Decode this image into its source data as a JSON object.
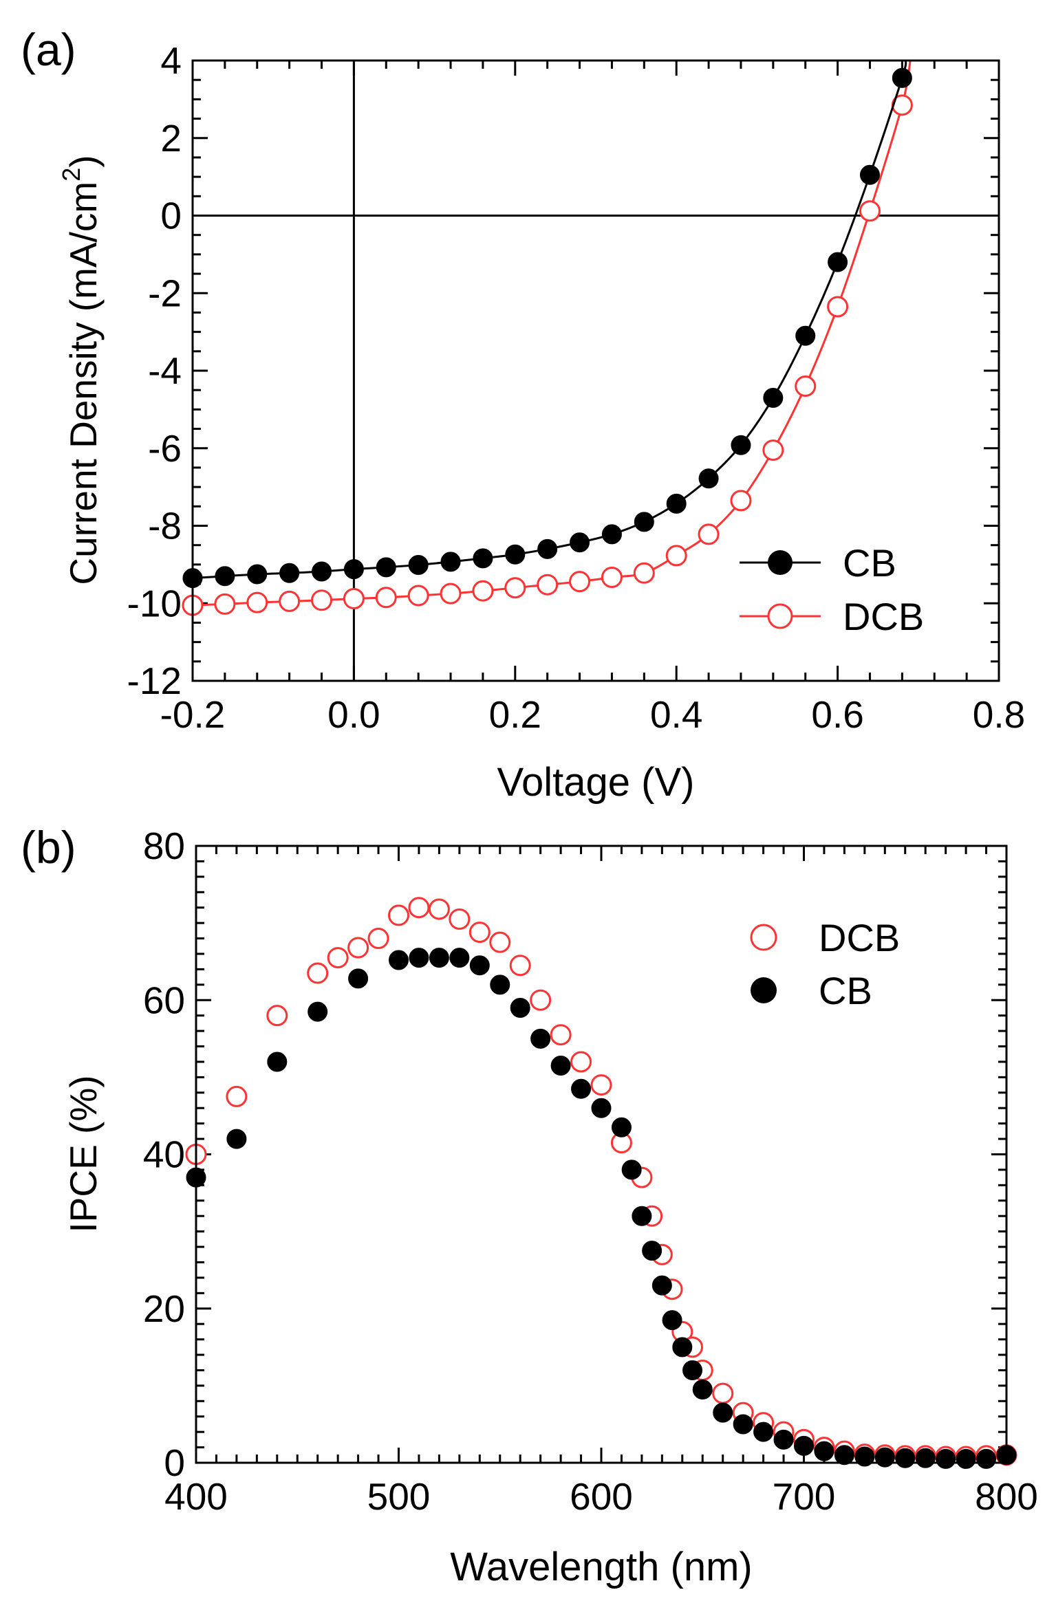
{
  "chart_data": [
    {
      "type": "line",
      "panel_label": "(a)",
      "xlabel": "Voltage (V)",
      "ylabel": "Current Density (mA/cm",
      "ylabel_sup": "2",
      "ylabel_tail": ")",
      "xlim": [
        -0.2,
        0.8
      ],
      "ylim": [
        -12,
        4
      ],
      "xticks": [
        -0.2,
        0.0,
        0.2,
        0.4,
        0.6,
        0.8
      ],
      "xtick_labels": [
        "-0.2",
        "0.0",
        "0.2",
        "0.4",
        "0.6",
        "0.8"
      ],
      "yticks": [
        -12,
        -10,
        -8,
        -6,
        -4,
        -2,
        0,
        2,
        4
      ],
      "ytick_labels": [
        "-12",
        "-10",
        "-8",
        "-6",
        "-4",
        "-2",
        "0",
        "2",
        "4"
      ],
      "zero_lines": true,
      "legend_position": "bottom-right",
      "series": [
        {
          "name": "CB",
          "color": "#000000",
          "marker": "filled-circle",
          "x": [
            -0.2,
            -0.16,
            -0.12,
            -0.08,
            -0.04,
            0.0,
            0.04,
            0.08,
            0.12,
            0.16,
            0.2,
            0.24,
            0.28,
            0.32,
            0.36,
            0.4,
            0.44,
            0.48,
            0.52,
            0.56,
            0.6,
            0.64,
            0.68
          ],
          "y": [
            -9.35,
            -9.3,
            -9.25,
            -9.22,
            -9.18,
            -9.12,
            -9.07,
            -9.01,
            -8.93,
            -8.84,
            -8.74,
            -8.6,
            -8.43,
            -8.22,
            -7.9,
            -7.43,
            -6.78,
            -5.92,
            -4.7,
            -3.1,
            -1.2,
            1.05,
            3.55
          ]
        },
        {
          "name": "DCB",
          "color": "#ff3333",
          "marker": "open-circle",
          "x": [
            -0.2,
            -0.16,
            -0.12,
            -0.08,
            -0.04,
            0.0,
            0.04,
            0.08,
            0.12,
            0.16,
            0.2,
            0.24,
            0.28,
            0.32,
            0.36,
            0.4,
            0.44,
            0.48,
            0.52,
            0.56,
            0.6,
            0.64,
            0.68
          ],
          "y": [
            -10.05,
            -10.02,
            -9.98,
            -9.95,
            -9.92,
            -9.88,
            -9.85,
            -9.8,
            -9.75,
            -9.68,
            -9.6,
            -9.52,
            -9.44,
            -9.33,
            -9.22,
            -8.77,
            -8.22,
            -7.35,
            -6.05,
            -4.4,
            -2.35,
            0.12,
            2.85
          ]
        }
      ]
    },
    {
      "type": "scatter",
      "panel_label": "(b)",
      "xlabel": "Wavelength (nm)",
      "ylabel": "IPCE (%)",
      "xlim": [
        400,
        800
      ],
      "ylim": [
        0,
        80
      ],
      "xticks": [
        400,
        500,
        600,
        700,
        800
      ],
      "xtick_labels": [
        "400",
        "500",
        "600",
        "700",
        "800"
      ],
      "yticks": [
        0,
        20,
        40,
        60,
        80
      ],
      "ytick_labels": [
        "0",
        "20",
        "40",
        "60",
        "80"
      ],
      "legend_position": "top-right",
      "series": [
        {
          "name": "DCB",
          "color": "#ff3333",
          "marker": "open-circle",
          "x": [
            400,
            420,
            440,
            460,
            470,
            480,
            490,
            500,
            510,
            520,
            530,
            540,
            550,
            560,
            570,
            580,
            590,
            600,
            610,
            620,
            625,
            630,
            635,
            640,
            645,
            650,
            660,
            670,
            680,
            690,
            700,
            710,
            720,
            730,
            740,
            750,
            760,
            770,
            780,
            790,
            800
          ],
          "y": [
            40,
            47.5,
            58,
            63.5,
            65.5,
            66.8,
            68,
            71,
            72,
            71.8,
            70.5,
            68.8,
            67.5,
            64.5,
            60,
            55.5,
            52,
            49,
            41.5,
            37,
            32,
            27,
            22.5,
            17,
            15,
            12,
            9,
            6.5,
            5.2,
            4,
            3,
            2,
            1.5,
            1.1,
            1,
            0.9,
            0.9,
            0.8,
            0.8,
            0.9,
            1
          ]
        },
        {
          "name": "CB",
          "color": "#000000",
          "marker": "filled-circle",
          "x": [
            400,
            420,
            440,
            460,
            480,
            500,
            510,
            520,
            530,
            540,
            550,
            560,
            570,
            580,
            590,
            600,
            610,
            615,
            620,
            625,
            630,
            635,
            640,
            645,
            650,
            660,
            670,
            680,
            690,
            700,
            710,
            720,
            730,
            740,
            750,
            760,
            770,
            780,
            790,
            800
          ],
          "y": [
            37,
            42,
            52,
            58.5,
            62.8,
            65.2,
            65.5,
            65.5,
            65.5,
            64.5,
            62,
            59,
            55,
            51.5,
            48.5,
            46,
            43.5,
            38,
            32,
            27.5,
            23,
            18.5,
            15,
            12,
            9.5,
            6.5,
            5,
            4,
            3,
            2.2,
            1.5,
            1,
            0.8,
            0.7,
            0.6,
            0.6,
            0.5,
            0.5,
            0.5,
            1
          ]
        }
      ]
    }
  ]
}
